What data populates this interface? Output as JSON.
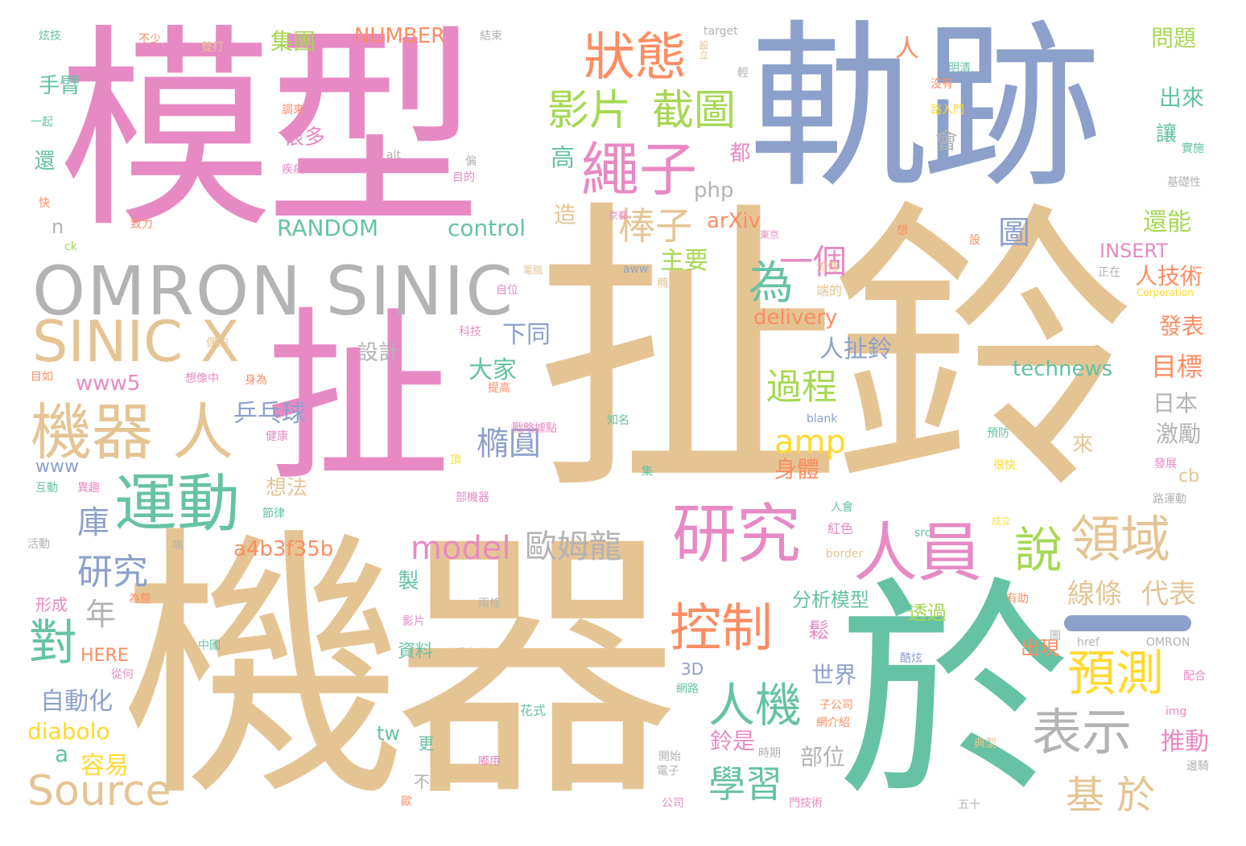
{
  "colors": {
    "pink": "#e78ac3",
    "tan": "#e5c494",
    "blue": "#8da0cb",
    "teal": "#66c2a5",
    "orange": "#fc8d62",
    "green": "#a6d854",
    "yellow": "#ffd92f",
    "gray": "#b3b3b3"
  },
  "words": [
    "模型",
    "軌跡",
    "扯鈴",
    "扯",
    "機器",
    "於",
    "OMRON SINIC",
    "SINIC X",
    "機器 人",
    "運動",
    "研究",
    "人員",
    "說",
    "狀態",
    "繩子",
    "影片",
    "截圖",
    "棒子",
    "為",
    "一個",
    "圖",
    "領域",
    "控制",
    "預測",
    "表示",
    "人機",
    "學習",
    "基 於",
    "對",
    "model",
    "歐姆龍",
    "橢圓",
    "乒乓球",
    "過程",
    "amp",
    "庫",
    "研究",
    "年",
    "Source",
    "自動化",
    "diabolo",
    "a",
    "容易",
    "www",
    "www5",
    "a4b3f35b",
    "HERE",
    "control",
    "RANDOM",
    "arXiv",
    "php",
    "delivery",
    "主要",
    "人技術",
    "NUMBER",
    "集團",
    "手臂",
    "代表",
    "很多",
    "還",
    "大家",
    "設計",
    "下同",
    "technews",
    "目標",
    "日本",
    "激勵",
    "INSERT",
    "發表",
    "還能",
    "出來",
    "讓",
    "問題",
    "人",
    "高",
    "造",
    "都",
    "會",
    "鈴是",
    "部位",
    "世界",
    "身體",
    "想法",
    "線條",
    "代表",
    "分析模型",
    "透過",
    "出現",
    "鬆",
    "資料",
    "製",
    "3D",
    "更",
    "tw",
    "不",
    "推動",
    "cb",
    "來",
    "人扯鈴",
    "n",
    "形成",
    "炫技",
    "不少",
    "結束",
    "target",
    "設立",
    "雙打",
    "明清",
    "一起",
    "沒有",
    "目的",
    "疾病",
    "京都",
    "東京",
    "電腦",
    "自位",
    "科技",
    "近未來",
    "中國",
    "花式",
    "紅色",
    "端的",
    "成立",
    "健康",
    "頂",
    "集",
    "戰略據點",
    "提高",
    "知名",
    "想像中",
    "身為",
    "偶的",
    "目如",
    "互動",
    "活動",
    "節律",
    "異趣",
    "嗎",
    "為整",
    "從何",
    "影片",
    "兩條",
    "開始",
    "網路",
    "電子",
    "公司",
    "時期",
    "五十",
    "典型",
    "部機器",
    "預防",
    "很快",
    "路運動",
    "發展",
    "基礎性",
    "實施",
    "Corporation",
    "OMRON",
    "href",
    "img",
    "border",
    "src",
    "blank",
    "aww",
    "alt",
    "ck",
    "快",
    "偏",
    "橢球體",
    "流傳",
    "正在",
    "想",
    "設",
    "輕",
    "調來",
    "有助",
    "路入門",
    "子公司",
    "網介紹",
    "門技術",
    "配合",
    "圖",
    "酷炫",
    "嘟用",
    "歐",
    "致力",
    "人會",
    "邊騎"
  ]
}
